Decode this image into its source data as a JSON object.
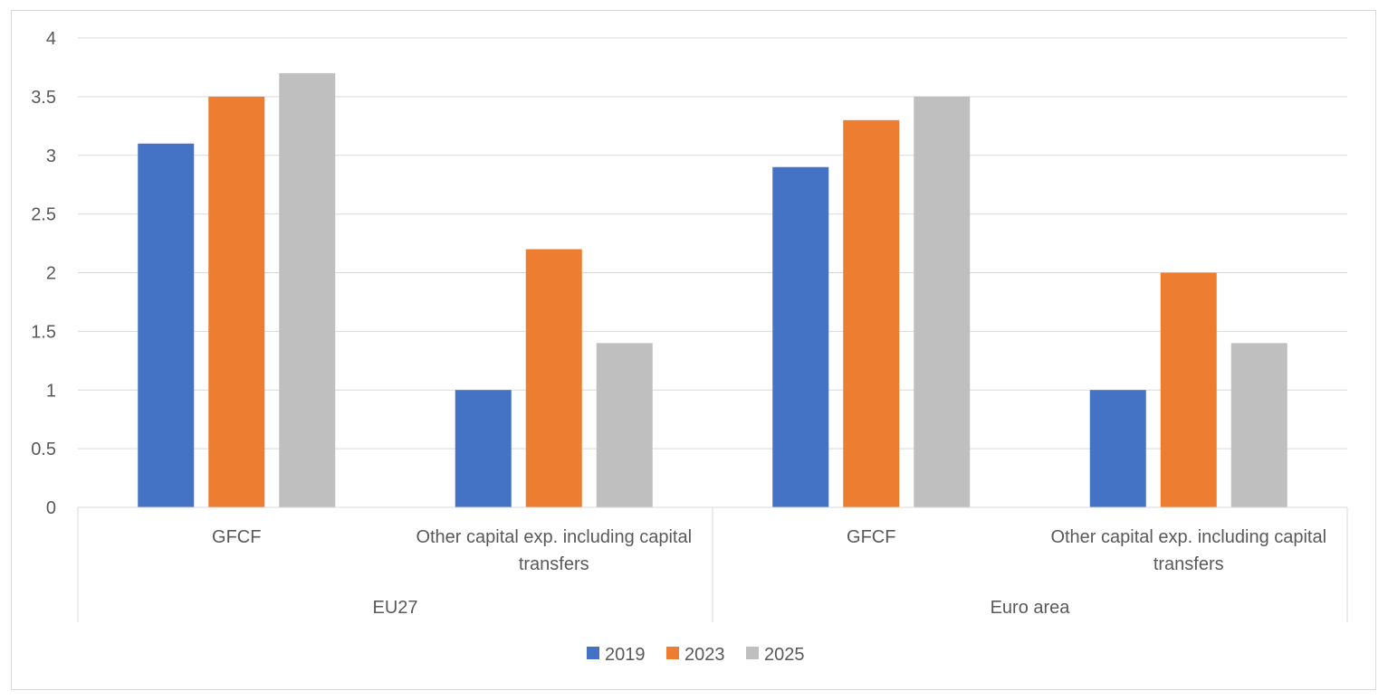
{
  "chart_data": {
    "type": "bar",
    "title": "",
    "xlabel": "",
    "ylabel": "",
    "ylim": [
      0,
      4
    ],
    "yticks": [
      "0",
      "0.5",
      "1",
      "1.5",
      "2",
      "2.5",
      "3",
      "3.5",
      "4"
    ],
    "grid": true,
    "legend_position": "bottom",
    "groups": [
      {
        "label": "EU27",
        "categories": [
          "GFCF",
          "Other capital exp. including capital transfers"
        ]
      },
      {
        "label": "Euro area",
        "categories": [
          "GFCF",
          "Other capital exp. including capital transfers"
        ]
      }
    ],
    "category_lines": [
      [
        "GFCF"
      ],
      [
        "Other capital exp. including capital",
        "transfers"
      ],
      [
        "GFCF"
      ],
      [
        "Other capital exp. including capital",
        "transfers"
      ]
    ],
    "series": [
      {
        "name": "2019",
        "color": "#4472c4",
        "values": [
          3.1,
          1.0,
          2.9,
          1.0
        ]
      },
      {
        "name": "2023",
        "color": "#ed7d31",
        "values": [
          3.5,
          2.2,
          3.3,
          2.0
        ]
      },
      {
        "name": "2025",
        "color": "#bfbfbf",
        "values": [
          3.7,
          1.4,
          3.5,
          1.4
        ]
      }
    ]
  }
}
